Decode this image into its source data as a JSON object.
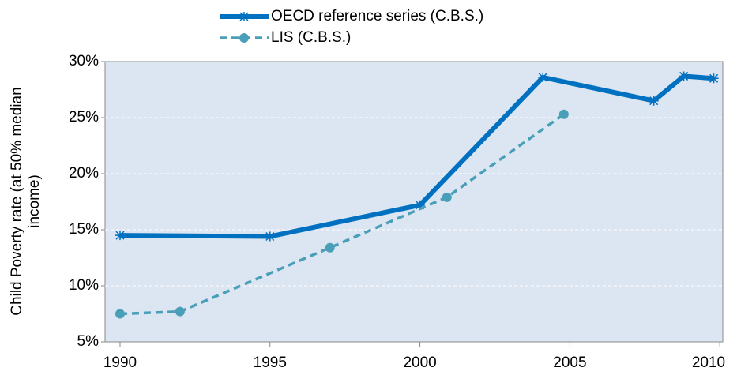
{
  "chart_data": {
    "type": "line",
    "ylabel": [
      "Child Poverty rate (at 50% median",
      "income)"
    ],
    "xlim": [
      1989.5,
      2010.1
    ],
    "xticks": [
      1990,
      1995,
      2000,
      2005,
      2010
    ],
    "ylim": [
      5,
      30
    ],
    "yticks": [
      {
        "value": 5,
        "label": "5%"
      },
      {
        "value": 10,
        "label": "10%"
      },
      {
        "value": 15,
        "label": "15%"
      },
      {
        "value": 20,
        "label": "20%"
      },
      {
        "value": 25,
        "label": "25%"
      },
      {
        "value": 30,
        "label": "30%"
      }
    ],
    "grid": true,
    "series": [
      {
        "name": "OECD reference series  (C.B.S.)",
        "color": "#0070c0",
        "marker": "asterisk",
        "dashed": false,
        "x": [
          1990,
          1995,
          2000,
          2004.1,
          2007.8,
          2008.8,
          2009.8
        ],
        "values": [
          14.5,
          14.4,
          17.2,
          28.6,
          26.5,
          28.7,
          28.5
        ]
      },
      {
        "name": "LIS (C.B.S.)",
        "color": "#4a9fb8",
        "marker": "circle",
        "dashed": true,
        "x": [
          1990,
          1992,
          1997,
          2000.9,
          2004.8
        ],
        "values": [
          7.5,
          7.7,
          13.4,
          17.9,
          25.3
        ]
      }
    ]
  }
}
